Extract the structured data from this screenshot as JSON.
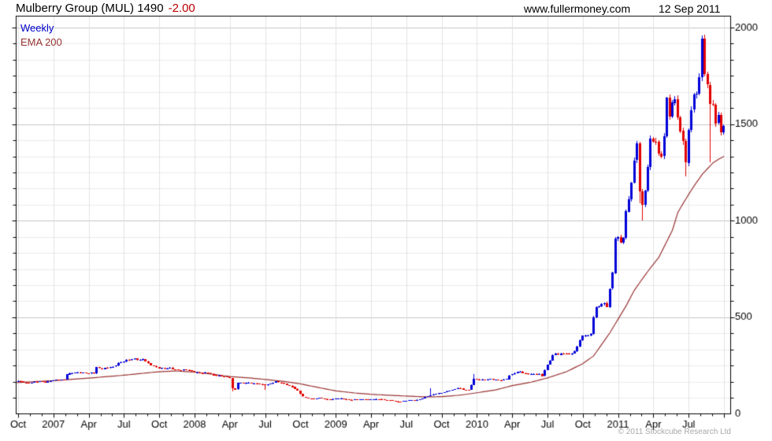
{
  "header": {
    "title": "Mulberry Group (MUL) 1490",
    "change": "-2.00",
    "website": "www.fullermoney.com",
    "date": "12 Sep 2011"
  },
  "legend": {
    "series_label": "Weekly",
    "ema_label": "EMA 200"
  },
  "footer": {
    "copyright": "© 2011 Stockcube Research Ltd"
  },
  "colors": {
    "up_candle": "#0000d8",
    "down_candle": "#e10000",
    "ema_line": "#993333",
    "change_text": "#bb0000",
    "series_label_text": "#0000cc",
    "grid_minor": "#ebebeb",
    "grid_major": "#c4c4c4",
    "grid_vertical": "#e2e2e2",
    "frame": "#000000",
    "axis_text": "#000000",
    "copyright_text": "#a8a8a8"
  },
  "chart_data": {
    "type": "candlestick",
    "title": "Mulberry Group (MUL)",
    "interval": "weekly",
    "last_price": 1490,
    "change": -2.0,
    "overlay": "EMA 200",
    "weeks": 261,
    "x_axis": {
      "start": "Oct 2006",
      "end": "Sep 2011",
      "tick_labels": [
        "Oct",
        "2007",
        "Apr",
        "Jul",
        "Oct",
        "2008",
        "Apr",
        "Jul",
        "Oct",
        "2009",
        "Apr",
        "Jul",
        "Oct",
        "2010",
        "Apr",
        "Jul",
        "Oct",
        "2011",
        "Apr",
        "Jul"
      ],
      "weeks_per_quarter": 13,
      "minor_ticks_per_quarter": 3
    },
    "y_axis": {
      "min": 0,
      "max": 2060,
      "tick_labels": [
        0,
        500,
        1000,
        1500,
        2000
      ],
      "minor_step": 83.333,
      "grid": true,
      "side": "right"
    },
    "close_anchors": [
      [
        0,
        170
      ],
      [
        2,
        165
      ],
      [
        4,
        158
      ],
      [
        6,
        164
      ],
      [
        8,
        168
      ],
      [
        10,
        165
      ],
      [
        12,
        171
      ],
      [
        15,
        176
      ],
      [
        17,
        178
      ],
      [
        18,
        206
      ],
      [
        20,
        212
      ],
      [
        23,
        214
      ],
      [
        26,
        210
      ],
      [
        28,
        208
      ],
      [
        29,
        240
      ],
      [
        31,
        234
      ],
      [
        33,
        238
      ],
      [
        35,
        242
      ],
      [
        37,
        264
      ],
      [
        39,
        272
      ],
      [
        41,
        278
      ],
      [
        43,
        285
      ],
      [
        45,
        279
      ],
      [
        46,
        284
      ],
      [
        48,
        258
      ],
      [
        50,
        247
      ],
      [
        52,
        238
      ],
      [
        54,
        233
      ],
      [
        56,
        237
      ],
      [
        58,
        229
      ],
      [
        60,
        224
      ],
      [
        62,
        228
      ],
      [
        64,
        221
      ],
      [
        66,
        215
      ],
      [
        68,
        209
      ],
      [
        70,
        213
      ],
      [
        72,
        201
      ],
      [
        74,
        196
      ],
      [
        76,
        192
      ],
      [
        78,
        188
      ],
      [
        79,
        132
      ],
      [
        80,
        126
      ],
      [
        81,
        160
      ],
      [
        83,
        157
      ],
      [
        85,
        163
      ],
      [
        87,
        157
      ],
      [
        89,
        154
      ],
      [
        91,
        149
      ],
      [
        93,
        157
      ],
      [
        95,
        165
      ],
      [
        97,
        159
      ],
      [
        99,
        151
      ],
      [
        101,
        140
      ],
      [
        103,
        118
      ],
      [
        104,
        103
      ],
      [
        105,
        88
      ],
      [
        107,
        79
      ],
      [
        109,
        75
      ],
      [
        111,
        82
      ],
      [
        113,
        77
      ],
      [
        115,
        74
      ],
      [
        117,
        78
      ],
      [
        119,
        81
      ],
      [
        121,
        75
      ],
      [
        123,
        71
      ],
      [
        125,
        74
      ],
      [
        127,
        77
      ],
      [
        129,
        72
      ],
      [
        131,
        75
      ],
      [
        133,
        78
      ],
      [
        135,
        73
      ],
      [
        137,
        69
      ],
      [
        139,
        65
      ],
      [
        141,
        63
      ],
      [
        143,
        68
      ],
      [
        145,
        71
      ],
      [
        147,
        73
      ],
      [
        149,
        80
      ],
      [
        151,
        91
      ],
      [
        153,
        101
      ],
      [
        155,
        106
      ],
      [
        157,
        112
      ],
      [
        159,
        120
      ],
      [
        161,
        128
      ],
      [
        162,
        135
      ],
      [
        164,
        125
      ],
      [
        166,
        123
      ],
      [
        167,
        152
      ],
      [
        168,
        181
      ],
      [
        170,
        177
      ],
      [
        172,
        174
      ],
      [
        174,
        180
      ],
      [
        176,
        176
      ],
      [
        178,
        173
      ],
      [
        180,
        181
      ],
      [
        181,
        199
      ],
      [
        183,
        212
      ],
      [
        185,
        219
      ],
      [
        186,
        210
      ],
      [
        188,
        206
      ],
      [
        190,
        209
      ],
      [
        192,
        204
      ],
      [
        193,
        197
      ],
      [
        194,
        226
      ],
      [
        195,
        256
      ],
      [
        196,
        281
      ],
      [
        197,
        302
      ],
      [
        198,
        312
      ],
      [
        199,
        304
      ],
      [
        201,
        316
      ],
      [
        203,
        309
      ],
      [
        205,
        321
      ],
      [
        206,
        349
      ],
      [
        207,
        378
      ],
      [
        208,
        403
      ],
      [
        209,
        411
      ],
      [
        210,
        404
      ],
      [
        211,
        416
      ],
      [
        212,
        500
      ],
      [
        213,
        546
      ],
      [
        214,
        558
      ],
      [
        215,
        567
      ],
      [
        216,
        577
      ],
      [
        217,
        562
      ],
      [
        218,
        642
      ],
      [
        219,
        731
      ],
      [
        220,
        902
      ],
      [
        221,
        907
      ],
      [
        222,
        899
      ],
      [
        223,
        910
      ],
      [
        224,
        1056
      ],
      [
        226,
        1180
      ],
      [
        227,
        1315
      ],
      [
        228,
        1393
      ],
      [
        229,
        1152
      ],
      [
        230,
        1098
      ],
      [
        231,
        1151
      ],
      [
        232,
        1282
      ],
      [
        233,
        1420
      ],
      [
        234,
        1392
      ],
      [
        235,
        1419
      ],
      [
        236,
        1346
      ],
      [
        237,
        1341
      ],
      [
        238,
        1452
      ],
      [
        239,
        1618
      ],
      [
        240,
        1541
      ],
      [
        241,
        1601
      ],
      [
        242,
        1621
      ],
      [
        243,
        1558
      ],
      [
        244,
        1463
      ],
      [
        245,
        1419
      ],
      [
        246,
        1301
      ],
      [
        247,
        1449
      ],
      [
        248,
        1578
      ],
      [
        249,
        1645
      ],
      [
        250,
        1660
      ],
      [
        251,
        1768
      ],
      [
        252,
        1930
      ],
      [
        253,
        1762
      ],
      [
        254,
        1695
      ],
      [
        255,
        1588
      ],
      [
        256,
        1617
      ],
      [
        257,
        1503
      ],
      [
        258,
        1556
      ],
      [
        259,
        1468
      ],
      [
        260,
        1490
      ]
    ],
    "ema_anchors": [
      [
        0,
        162
      ],
      [
        13,
        172
      ],
      [
        26,
        185
      ],
      [
        39,
        200
      ],
      [
        46,
        210
      ],
      [
        52,
        218
      ],
      [
        58,
        222
      ],
      [
        65,
        216
      ],
      [
        71,
        206
      ],
      [
        78,
        193
      ],
      [
        85,
        186
      ],
      [
        91,
        178
      ],
      [
        98,
        168
      ],
      [
        104,
        155
      ],
      [
        110,
        138
      ],
      [
        117,
        119
      ],
      [
        124,
        108
      ],
      [
        130,
        101
      ],
      [
        137,
        96
      ],
      [
        143,
        92
      ],
      [
        150,
        88
      ],
      [
        156,
        89
      ],
      [
        163,
        97
      ],
      [
        169,
        109
      ],
      [
        176,
        124
      ],
      [
        182,
        146
      ],
      [
        189,
        164
      ],
      [
        195,
        186
      ],
      [
        202,
        218
      ],
      [
        208,
        260
      ],
      [
        212,
        300
      ],
      [
        215,
        360
      ],
      [
        218,
        420
      ],
      [
        221,
        490
      ],
      [
        224,
        560
      ],
      [
        227,
        640
      ],
      [
        230,
        700
      ],
      [
        233,
        757
      ],
      [
        236,
        810
      ],
      [
        238,
        866
      ],
      [
        241,
        950
      ],
      [
        243,
        1042
      ],
      [
        245,
        1090
      ],
      [
        247,
        1136
      ],
      [
        249,
        1180
      ],
      [
        252,
        1240
      ],
      [
        254,
        1270
      ],
      [
        256,
        1300
      ],
      [
        258,
        1318
      ],
      [
        260,
        1333
      ]
    ],
    "wick_overrides": {
      "79": {
        "low": 116
      },
      "91": {
        "low": 124
      },
      "152": {
        "high": 132
      },
      "168": {
        "high": 206
      },
      "229": {
        "low": 1092
      },
      "230": {
        "low": 1000
      },
      "246": {
        "low": 1230
      },
      "252": {
        "high": 1959
      },
      "255": {
        "low": 1303
      }
    },
    "noise_amp": 0.013
  }
}
